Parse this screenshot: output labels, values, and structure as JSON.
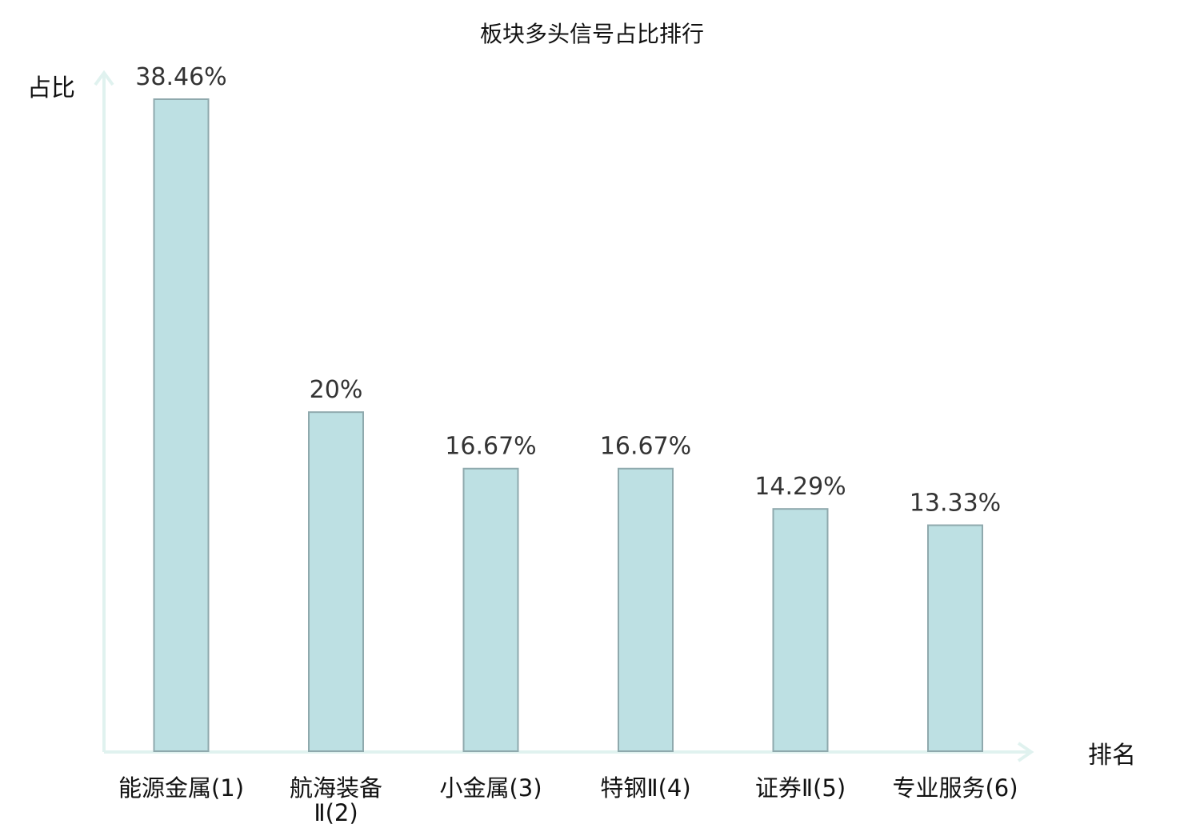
{
  "chart_data": {
    "type": "bar",
    "title": "板块多头信号占比排行",
    "xlabel": "排名",
    "ylabel": "占比",
    "categories": [
      {
        "name": "能源金属",
        "rank": "(1)"
      },
      {
        "name": "航海装备",
        "rank": "Ⅱ(2)"
      },
      {
        "name": "小金属",
        "rank": "(3)"
      },
      {
        "name": "特钢",
        "rank": "Ⅱ(4)"
      },
      {
        "name": "证券",
        "rank": "Ⅱ(5)"
      },
      {
        "name": "专业服务",
        "rank": "(6)"
      }
    ],
    "values": [
      38.46,
      20,
      16.67,
      16.67,
      14.29,
      13.33
    ],
    "value_labels": [
      "38.46%",
      "20%",
      "16.67%",
      "16.67%",
      "14.29%",
      "13.33%"
    ],
    "ylim": [
      0,
      40
    ],
    "grid": false,
    "colors": {
      "bar_fill": "#bde0e3",
      "bar_stroke": "#8fa9ad",
      "axis": "#e0f2ef",
      "highlight": "#e8141c",
      "text": "#111111"
    },
    "highlight_index": 5
  }
}
